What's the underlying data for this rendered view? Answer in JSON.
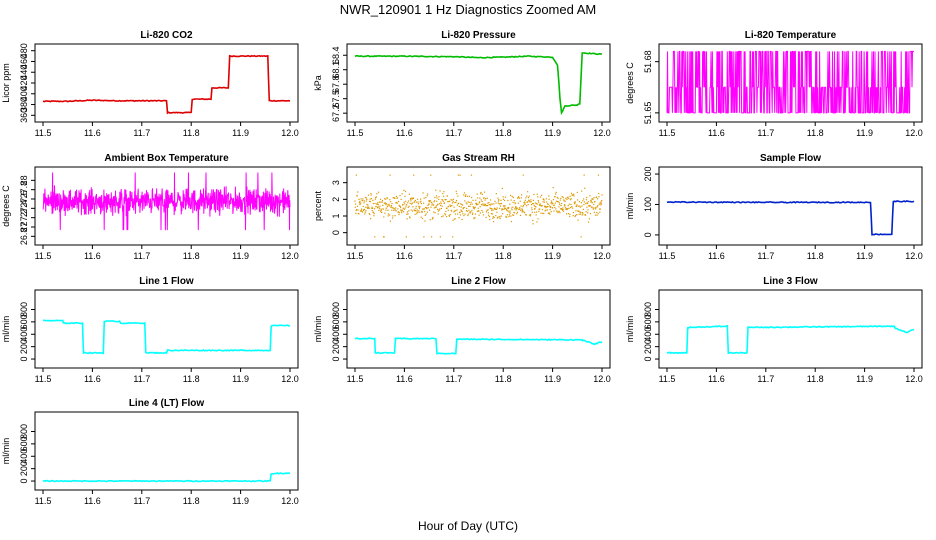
{
  "figure": {
    "title": "NWR_120901  1 Hz Diagnostics Zoomed AM",
    "xlabel": "Hour of Day (UTC)"
  },
  "chart_data": [
    {
      "type": "line",
      "title": "Li-820 CO2",
      "ylabel": "Licor ppm",
      "color": "#dd0000",
      "xlim": [
        11.5,
        12.0
      ],
      "ylim": [
        355,
        485
      ],
      "xticks": [
        "11.5",
        "11.6",
        "11.7",
        "11.8",
        "11.9",
        "12.0"
      ],
      "yticks": [
        360,
        380,
        400,
        420,
        440,
        460,
        480
      ],
      "x": [
        11.5,
        11.55,
        11.6,
        11.65,
        11.7,
        11.75,
        11.752,
        11.8,
        11.802,
        11.84,
        11.842,
        11.875,
        11.878,
        11.955,
        11.958,
        12.0
      ],
      "y": [
        386,
        386,
        388,
        387,
        387,
        387,
        365,
        365,
        390,
        390,
        411,
        411,
        470,
        470,
        387,
        387
      ]
    },
    {
      "type": "line",
      "title": "Li-820 Pressure",
      "ylabel": "kPa",
      "color": "#00bb00",
      "xlim": [
        11.5,
        12.0
      ],
      "ylim": [
        67.1,
        68.55
      ],
      "xticks": [
        "11.5",
        "11.6",
        "11.7",
        "11.8",
        "11.9",
        "12.0"
      ],
      "yticks": [
        67.2,
        67.5,
        67.8,
        68.1,
        68.4
      ],
      "x": [
        11.5,
        11.6,
        11.7,
        11.75,
        11.8,
        11.85,
        11.9,
        11.91,
        11.915,
        11.918,
        11.925,
        11.95,
        11.955,
        11.96,
        12.0
      ],
      "y": [
        68.38,
        68.38,
        68.37,
        68.35,
        68.36,
        68.38,
        68.36,
        68.2,
        67.5,
        67.2,
        67.35,
        67.37,
        67.4,
        68.45,
        68.42
      ]
    },
    {
      "type": "line",
      "title": "Li-820 Temperature",
      "ylabel": "degrees C",
      "color": "#ff00ff",
      "xlim": [
        11.5,
        12.0
      ],
      "ylim": [
        51.647,
        51.688
      ],
      "xticks": [
        "11.5",
        "11.6",
        "11.7",
        "11.8",
        "11.9",
        "12.0"
      ],
      "yticks": [
        "51.65",
        "51.68"
      ],
      "quantized_levels": [
        51.65,
        51.665,
        51.686
      ],
      "note_noise": "rapid switching between quantized levels across entire range"
    },
    {
      "type": "line",
      "title": "Ambient Box Temperature",
      "ylabel": "degrees C",
      "color": "#ff00ff",
      "xlim": [
        11.5,
        12.0
      ],
      "ylim": [
        26.7,
        28.2
      ],
      "xticks": [
        "11.5",
        "11.6",
        "11.7",
        "11.8",
        "11.9",
        "12.0"
      ],
      "yticks": [
        26.8,
        27.0,
        27.2,
        27.4,
        27.6,
        27.8,
        28.0
      ],
      "mean": 27.55,
      "range": [
        26.8,
        28.1
      ]
    },
    {
      "type": "scatter",
      "title": "Gas Stream RH",
      "ylabel": "percent",
      "color": "#dd9900",
      "xlim": [
        11.5,
        12.0
      ],
      "ylim": [
        -0.5,
        3.7
      ],
      "xticks": [
        "11.5",
        "11.6",
        "11.7",
        "11.8",
        "11.9",
        "12.0"
      ],
      "yticks": [
        0,
        1,
        2,
        3
      ],
      "mean": 1.6,
      "range": [
        -0.3,
        3.6
      ]
    },
    {
      "type": "line",
      "title": "Sample Flow",
      "ylabel": "ml/min",
      "color": "#0022cc",
      "xlim": [
        11.5,
        12.0
      ],
      "ylim": [
        -20,
        210
      ],
      "xticks": [
        "11.5",
        "11.6",
        "11.7",
        "11.8",
        "11.9",
        "12.0"
      ],
      "yticks": [
        0,
        100,
        200
      ],
      "x": [
        11.5,
        11.7,
        11.912,
        11.915,
        11.955,
        11.958,
        12.0
      ],
      "y": [
        108,
        107,
        107,
        2,
        2,
        110,
        110
      ]
    },
    {
      "type": "line",
      "title": "Line 1 Flow",
      "ylabel": "ml/min",
      "color": "#00ffff",
      "xlim": [
        11.5,
        12.0
      ],
      "ylim": [
        -80,
        1050
      ],
      "xticks": [
        "11.5",
        "11.6",
        "11.7",
        "11.8",
        "11.9",
        "12.0"
      ],
      "yticks": [
        0,
        200,
        400,
        600,
        800
      ],
      "x": [
        11.5,
        11.54,
        11.541,
        11.58,
        11.582,
        11.622,
        11.624,
        11.655,
        11.657,
        11.706,
        11.708,
        11.75,
        11.752,
        11.96,
        11.962,
        12.0
      ],
      "y": [
        620,
        620,
        580,
        580,
        100,
        100,
        610,
        610,
        580,
        580,
        100,
        100,
        140,
        140,
        540,
        540
      ]
    },
    {
      "type": "line",
      "title": "Line 2 Flow",
      "ylabel": "ml/min",
      "color": "#00ffff",
      "xlim": [
        11.5,
        12.0
      ],
      "ylim": [
        -80,
        1050
      ],
      "xticks": [
        "11.5",
        "11.6",
        "11.7",
        "11.8",
        "11.9",
        "12.0"
      ],
      "yticks": [
        0,
        200,
        400,
        600,
        800
      ],
      "x": [
        11.5,
        11.54,
        11.541,
        11.58,
        11.582,
        11.664,
        11.666,
        11.704,
        11.706,
        11.96,
        11.962,
        11.985,
        12.0
      ],
      "y": [
        330,
        330,
        100,
        100,
        330,
        330,
        90,
        90,
        320,
        310,
        300,
        240,
        280
      ]
    },
    {
      "type": "line",
      "title": "Line 3 Flow",
      "ylabel": "ml/min",
      "color": "#00ffff",
      "xlim": [
        11.5,
        12.0
      ],
      "ylim": [
        -80,
        1050
      ],
      "xticks": [
        "11.5",
        "11.6",
        "11.7",
        "11.8",
        "11.9",
        "12.0"
      ],
      "yticks": [
        0,
        200,
        400,
        600,
        800
      ],
      "x": [
        11.5,
        11.54,
        11.542,
        11.622,
        11.624,
        11.662,
        11.664,
        11.96,
        11.962,
        11.985,
        12.0
      ],
      "y": [
        100,
        100,
        510,
        530,
        100,
        100,
        510,
        530,
        500,
        430,
        480
      ]
    },
    {
      "type": "line",
      "title": "Line 4 (LT) Flow",
      "ylabel": "ml/min",
      "color": "#00ffff",
      "xlim": [
        11.5,
        12.0
      ],
      "ylim": [
        -80,
        1050
      ],
      "xticks": [
        "11.5",
        "11.6",
        "11.7",
        "11.8",
        "11.9",
        "12.0"
      ],
      "yticks": [
        0,
        200,
        400,
        600,
        800
      ],
      "x": [
        11.5,
        11.96,
        11.962,
        12.0
      ],
      "y": [
        0,
        0,
        120,
        130
      ]
    }
  ]
}
